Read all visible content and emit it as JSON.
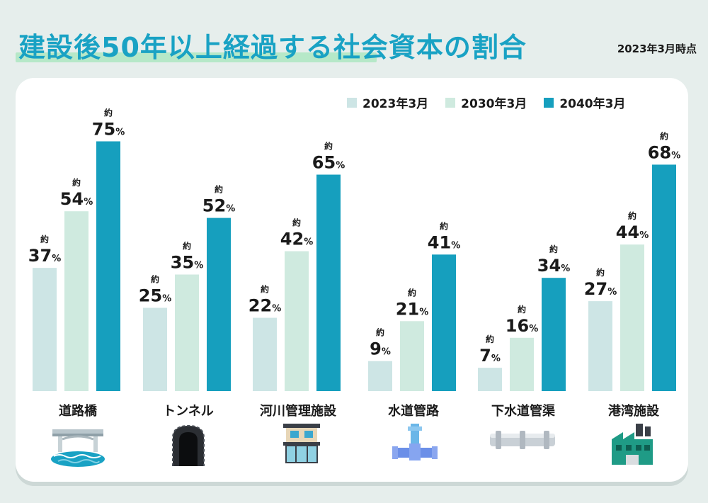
{
  "title": "建設後50年以上経過する社会資本の割合",
  "as_of": "2023年3月時点",
  "approx_label": "約",
  "percent_unit": "%",
  "colors": {
    "title": "#19a2c4",
    "series": [
      "#cde5e5",
      "#cfeadf",
      "#169fbe"
    ],
    "underline": "#b6e8c8",
    "background": "#e6eeec"
  },
  "chart_data": {
    "type": "bar",
    "title": "建設後50年以上経過する社会資本の割合",
    "categories": [
      "道路橋",
      "トンネル",
      "河川管理施設",
      "水道管路",
      "下水道管渠",
      "港湾施設"
    ],
    "series": [
      {
        "name": "2023年3月",
        "values": [
          37,
          25,
          22,
          9,
          7,
          27
        ]
      },
      {
        "name": "2030年3月",
        "values": [
          54,
          35,
          42,
          21,
          16,
          44
        ]
      },
      {
        "name": "2040年3月",
        "values": [
          75,
          52,
          65,
          41,
          34,
          68
        ]
      }
    ],
    "unit": "%",
    "ylim": [
      0,
      100
    ],
    "grid": false,
    "legend_position": "top-right",
    "category_icons": [
      "bridge-icon",
      "tunnel-icon",
      "river-facility-icon",
      "water-pipe-icon",
      "sewer-pipe-icon",
      "port-facility-icon"
    ]
  }
}
